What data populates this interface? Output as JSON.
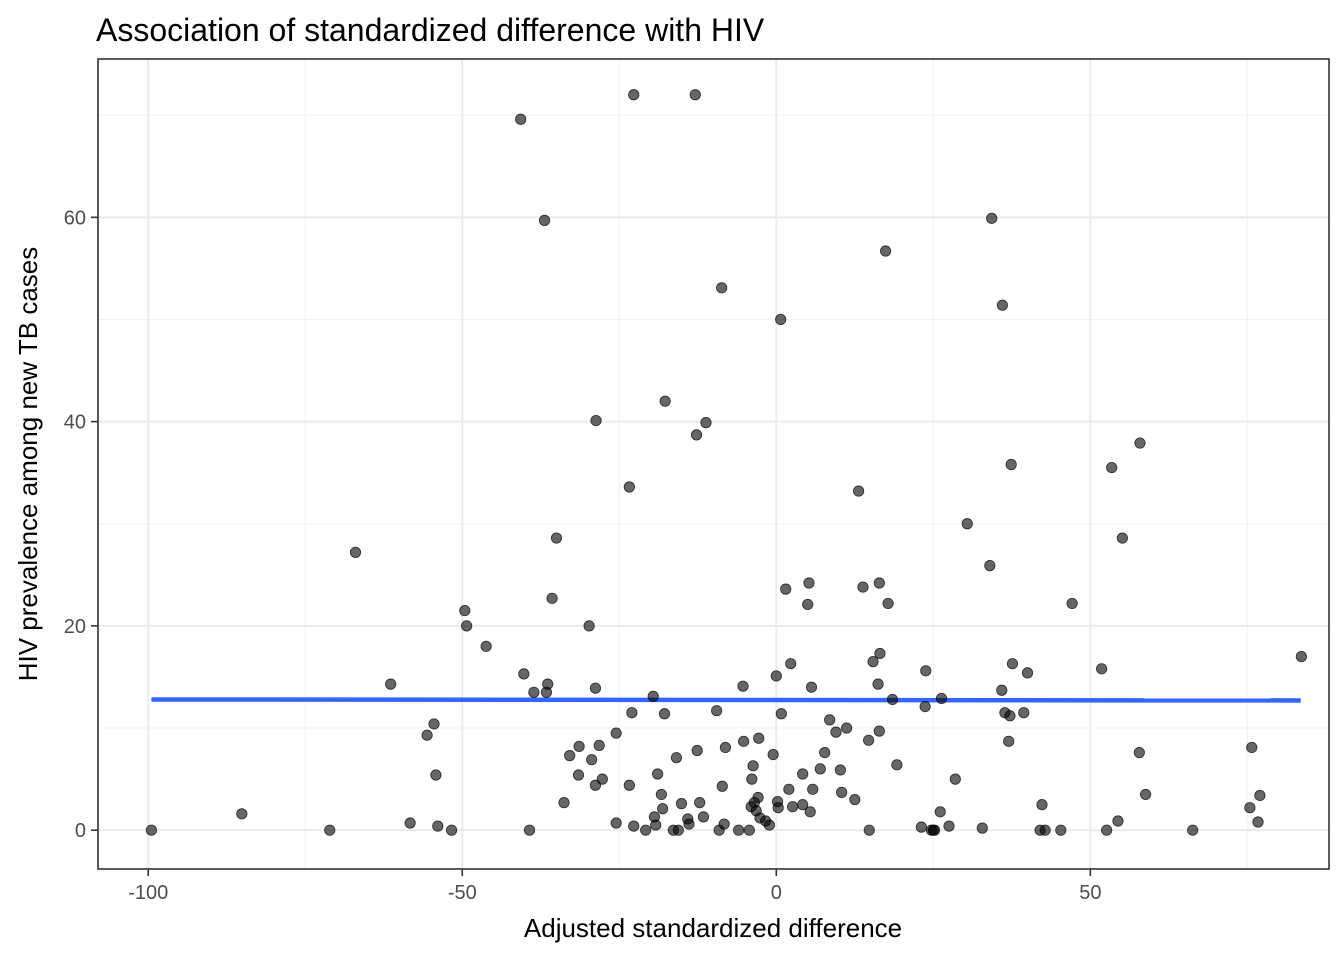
{
  "chart_data": {
    "type": "scatter",
    "title": "Association of standardized difference with HIV",
    "xlabel": "Adjusted standardized difference",
    "ylabel": "HIV prevalence among new TB cases",
    "xlim": [
      -108,
      88
    ],
    "ylim": [
      -3.8,
      75.5
    ],
    "x_ticks": [
      -100,
      -50,
      0,
      50
    ],
    "y_ticks": [
      0,
      20,
      40,
      60
    ],
    "x_tick_labels": [
      "-100",
      "-50",
      "0",
      "50"
    ],
    "y_tick_labels": [
      "0",
      "20",
      "40",
      "60"
    ],
    "grid": true,
    "point_color": "#000000",
    "point_opacity": 0.6,
    "trend_color": "#3366ff",
    "trend_line": {
      "x": [
        -99.5,
        83.5
      ],
      "y": [
        12.8,
        12.7
      ]
    },
    "points": [
      {
        "x": -99.5,
        "y": 0.0
      },
      {
        "x": -85.1,
        "y": 1.6
      },
      {
        "x": -71.1,
        "y": 0.0
      },
      {
        "x": -67.0,
        "y": 27.2
      },
      {
        "x": -61.4,
        "y": 14.3
      },
      {
        "x": -58.3,
        "y": 0.7
      },
      {
        "x": -55.6,
        "y": 9.3
      },
      {
        "x": -54.5,
        "y": 10.4
      },
      {
        "x": -54.2,
        "y": 5.4
      },
      {
        "x": -53.9,
        "y": 0.4
      },
      {
        "x": -51.7,
        "y": 0.0
      },
      {
        "x": -49.6,
        "y": 21.5
      },
      {
        "x": -49.3,
        "y": 20.0
      },
      {
        "x": -46.2,
        "y": 18.0
      },
      {
        "x": -40.7,
        "y": 69.6
      },
      {
        "x": -40.2,
        "y": 15.3
      },
      {
        "x": -39.3,
        "y": 0.0
      },
      {
        "x": -38.6,
        "y": 13.5
      },
      {
        "x": -36.9,
        "y": 59.7
      },
      {
        "x": -36.6,
        "y": 13.5
      },
      {
        "x": -36.4,
        "y": 14.3
      },
      {
        "x": -35.7,
        "y": 22.7
      },
      {
        "x": -35.0,
        "y": 28.6
      },
      {
        "x": -33.8,
        "y": 2.7
      },
      {
        "x": -32.9,
        "y": 7.3
      },
      {
        "x": -31.5,
        "y": 5.4
      },
      {
        "x": -31.4,
        "y": 8.2
      },
      {
        "x": -29.8,
        "y": 20.0
      },
      {
        "x": -29.4,
        "y": 6.9
      },
      {
        "x": -28.8,
        "y": 13.9
      },
      {
        "x": -28.8,
        "y": 4.4
      },
      {
        "x": -28.7,
        "y": 40.1
      },
      {
        "x": -28.2,
        "y": 8.3
      },
      {
        "x": -27.7,
        "y": 5.0
      },
      {
        "x": -25.5,
        "y": 9.5
      },
      {
        "x": -25.5,
        "y": 0.7
      },
      {
        "x": -23.4,
        "y": 4.4
      },
      {
        "x": -23.4,
        "y": 33.6
      },
      {
        "x": -23.0,
        "y": 11.5
      },
      {
        "x": -22.7,
        "y": 72.0
      },
      {
        "x": -22.7,
        "y": 0.4
      },
      {
        "x": -20.8,
        "y": 0.0
      },
      {
        "x": -19.6,
        "y": 13.1
      },
      {
        "x": -19.4,
        "y": 1.3
      },
      {
        "x": -19.2,
        "y": 0.5
      },
      {
        "x": -18.9,
        "y": 5.5
      },
      {
        "x": -18.3,
        "y": 3.5
      },
      {
        "x": -18.1,
        "y": 2.1
      },
      {
        "x": -17.8,
        "y": 11.4
      },
      {
        "x": -17.7,
        "y": 42.0
      },
      {
        "x": -16.4,
        "y": 0.0
      },
      {
        "x": -15.9,
        "y": 7.1
      },
      {
        "x": -15.6,
        "y": 0.0
      },
      {
        "x": -15.1,
        "y": 2.6
      },
      {
        "x": -14.1,
        "y": 1.1
      },
      {
        "x": -13.9,
        "y": 0.6
      },
      {
        "x": -12.9,
        "y": 72.0
      },
      {
        "x": -12.7,
        "y": 38.7
      },
      {
        "x": -12.6,
        "y": 7.8
      },
      {
        "x": -12.2,
        "y": 2.7
      },
      {
        "x": -11.6,
        "y": 1.3
      },
      {
        "x": -11.2,
        "y": 39.9
      },
      {
        "x": -9.5,
        "y": 11.7
      },
      {
        "x": -9.1,
        "y": 0.0
      },
      {
        "x": -8.7,
        "y": 53.1
      },
      {
        "x": -8.6,
        "y": 4.3
      },
      {
        "x": -8.3,
        "y": 0.6
      },
      {
        "x": -8.1,
        "y": 8.1
      },
      {
        "x": -6.0,
        "y": 0.0
      },
      {
        "x": -5.3,
        "y": 14.1
      },
      {
        "x": -5.2,
        "y": 8.7
      },
      {
        "x": -4.3,
        "y": 0.0
      },
      {
        "x": -4.0,
        "y": 2.3
      },
      {
        "x": -3.9,
        "y": 5.0
      },
      {
        "x": -3.7,
        "y": 6.3
      },
      {
        "x": -3.5,
        "y": 2.7
      },
      {
        "x": -3.2,
        "y": 1.9
      },
      {
        "x": -2.9,
        "y": 3.2
      },
      {
        "x": -2.8,
        "y": 9.0
      },
      {
        "x": -2.6,
        "y": 1.2
      },
      {
        "x": -1.7,
        "y": 0.9
      },
      {
        "x": -1.1,
        "y": 0.5
      },
      {
        "x": -0.5,
        "y": 7.4
      },
      {
        "x": 0.0,
        "y": 15.1
      },
      {
        "x": 0.2,
        "y": 2.8
      },
      {
        "x": 0.3,
        "y": 2.2
      },
      {
        "x": 0.7,
        "y": 50.0
      },
      {
        "x": 0.8,
        "y": 11.4
      },
      {
        "x": 1.5,
        "y": 23.6
      },
      {
        "x": 2.0,
        "y": 4.0
      },
      {
        "x": 2.3,
        "y": 16.3
      },
      {
        "x": 2.6,
        "y": 2.3
      },
      {
        "x": 4.2,
        "y": 5.5
      },
      {
        "x": 4.2,
        "y": 2.5
      },
      {
        "x": 5.0,
        "y": 22.1
      },
      {
        "x": 5.2,
        "y": 24.2
      },
      {
        "x": 5.4,
        "y": 1.8
      },
      {
        "x": 5.6,
        "y": 14.0
      },
      {
        "x": 5.8,
        "y": 4.0
      },
      {
        "x": 7.0,
        "y": 6.0
      },
      {
        "x": 7.7,
        "y": 7.6
      },
      {
        "x": 8.5,
        "y": 10.8
      },
      {
        "x": 9.5,
        "y": 9.6
      },
      {
        "x": 10.2,
        "y": 5.9
      },
      {
        "x": 10.4,
        "y": 3.7
      },
      {
        "x": 11.2,
        "y": 10.0
      },
      {
        "x": 12.5,
        "y": 3.0
      },
      {
        "x": 13.1,
        "y": 33.2
      },
      {
        "x": 13.8,
        "y": 23.8
      },
      {
        "x": 14.7,
        "y": 8.8
      },
      {
        "x": 14.8,
        "y": 0.0
      },
      {
        "x": 15.4,
        "y": 16.5
      },
      {
        "x": 16.2,
        "y": 14.3
      },
      {
        "x": 16.4,
        "y": 24.2
      },
      {
        "x": 16.4,
        "y": 9.7
      },
      {
        "x": 16.5,
        "y": 17.3
      },
      {
        "x": 17.4,
        "y": 56.7
      },
      {
        "x": 17.8,
        "y": 22.2
      },
      {
        "x": 18.5,
        "y": 12.8
      },
      {
        "x": 19.2,
        "y": 6.4
      },
      {
        "x": 23.1,
        "y": 0.3
      },
      {
        "x": 23.7,
        "y": 12.1
      },
      {
        "x": 23.8,
        "y": 15.6
      },
      {
        "x": 24.7,
        "y": 0.0
      },
      {
        "x": 25.0,
        "y": 0.0
      },
      {
        "x": 25.2,
        "y": 0.0
      },
      {
        "x": 26.1,
        "y": 1.8
      },
      {
        "x": 26.3,
        "y": 12.9
      },
      {
        "x": 27.5,
        "y": 0.4
      },
      {
        "x": 28.5,
        "y": 5.0
      },
      {
        "x": 30.4,
        "y": 30.0
      },
      {
        "x": 32.8,
        "y": 0.2
      },
      {
        "x": 34.0,
        "y": 25.9
      },
      {
        "x": 34.3,
        "y": 59.9
      },
      {
        "x": 35.9,
        "y": 13.7
      },
      {
        "x": 36.0,
        "y": 51.4
      },
      {
        "x": 36.4,
        "y": 11.5
      },
      {
        "x": 37.0,
        "y": 8.7
      },
      {
        "x": 37.2,
        "y": 11.2
      },
      {
        "x": 37.4,
        "y": 35.8
      },
      {
        "x": 37.6,
        "y": 16.3
      },
      {
        "x": 39.4,
        "y": 11.5
      },
      {
        "x": 40.0,
        "y": 15.4
      },
      {
        "x": 42.0,
        "y": 0.0
      },
      {
        "x": 42.3,
        "y": 2.5
      },
      {
        "x": 42.8,
        "y": 0.0
      },
      {
        "x": 45.3,
        "y": 0.0
      },
      {
        "x": 47.1,
        "y": 22.2
      },
      {
        "x": 51.8,
        "y": 15.8
      },
      {
        "x": 52.6,
        "y": 0.0
      },
      {
        "x": 53.4,
        "y": 35.5
      },
      {
        "x": 54.4,
        "y": 0.9
      },
      {
        "x": 55.1,
        "y": 28.6
      },
      {
        "x": 57.8,
        "y": 7.6
      },
      {
        "x": 57.9,
        "y": 37.9
      },
      {
        "x": 58.8,
        "y": 3.5
      },
      {
        "x": 66.3,
        "y": 0.0
      },
      {
        "x": 75.4,
        "y": 2.2
      },
      {
        "x": 75.7,
        "y": 8.1
      },
      {
        "x": 76.7,
        "y": 0.8
      },
      {
        "x": 77.0,
        "y": 3.4
      },
      {
        "x": 83.6,
        "y": 17.0
      }
    ]
  }
}
